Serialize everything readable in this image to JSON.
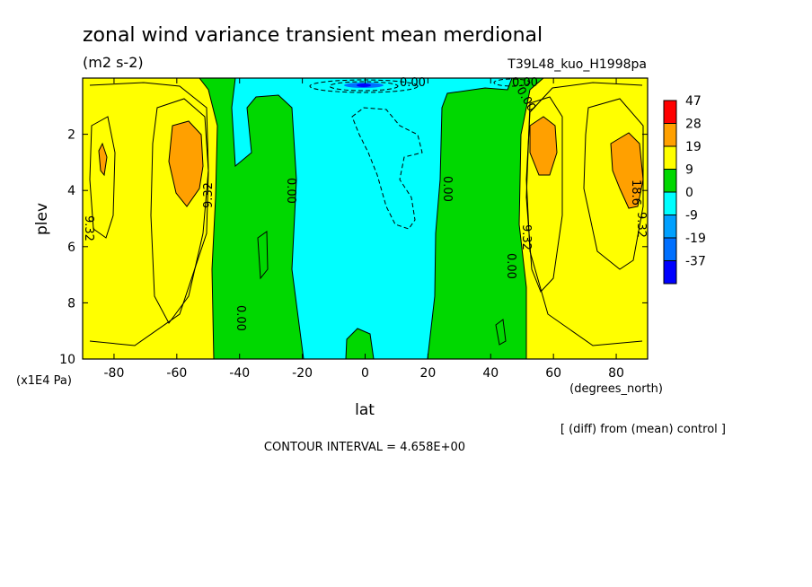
{
  "chart_data": {
    "type": "contour",
    "title": "zonal wind variance transient mean merdional",
    "units": "(m2 s-2)",
    "run_label": "T39L48_kuo_H1998pa",
    "xlabel": "lat",
    "x_units": "(degrees_north)",
    "ylabel": "plev",
    "y_units": "(x1E4 Pa)",
    "xlim": [
      -90,
      90
    ],
    "ylim": [
      10,
      0
    ],
    "x_ticks": [
      "-80",
      "-60",
      "-40",
      "-20",
      "0",
      "20",
      "40",
      "60",
      "80"
    ],
    "x_tick_values": [
      -80,
      -60,
      -40,
      -20,
      0,
      20,
      40,
      60,
      80
    ],
    "y_ticks": [
      "2",
      "4",
      "6",
      "8",
      "10"
    ],
    "y_tick_values": [
      2,
      4,
      6,
      8,
      10
    ],
    "legend": [
      {
        "label": "47",
        "color": "#ff0000"
      },
      {
        "label": "28",
        "color": "#ffa000"
      },
      {
        "label": "19",
        "color": "#ffff00"
      },
      {
        "label": "9",
        "color": "#00d800"
      },
      {
        "label": "0",
        "color": "#00ffff"
      },
      {
        "label": "-9",
        "color": "#00a0ff"
      },
      {
        "label": "-19",
        "color": "#0070ff"
      },
      {
        "label": "-37",
        "color": "#0000ff"
      }
    ],
    "contour_labels": [
      "0.00",
      "0.00",
      "0.00",
      "0.00",
      "0.00",
      "0.00",
      "0.00",
      "9.32",
      "9.32",
      "9.32",
      "9.32",
      "18.6"
    ],
    "diff_note": "[ (diff) from (mean) control ]",
    "contour_interval": "CONTOUR INTERVAL = 4.658E+00"
  }
}
